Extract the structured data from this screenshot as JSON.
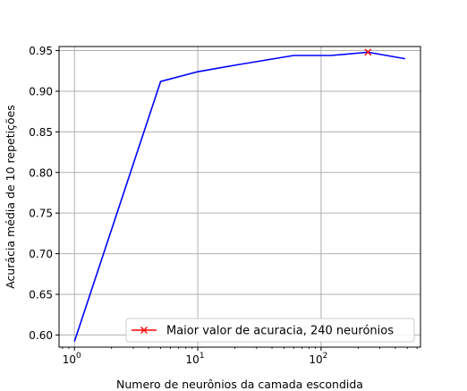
{
  "chart_data": {
    "type": "line",
    "xlabel": "Numero de neurônios da camada escondida",
    "ylabel": "Acurácia média de 10 repetições",
    "xscale": "log",
    "xlim": [
      0.75,
      640
    ],
    "ylim": [
      0.585,
      0.955
    ],
    "grid": true,
    "xticks": [
      {
        "value": 1,
        "base": "10",
        "exp": "0"
      },
      {
        "value": 10,
        "base": "10",
        "exp": "1"
      },
      {
        "value": 100,
        "base": "10",
        "exp": "2"
      }
    ],
    "yticks": [
      {
        "value": 0.6,
        "label": "0.60"
      },
      {
        "value": 0.65,
        "label": "0.65"
      },
      {
        "value": 0.7,
        "label": "0.70"
      },
      {
        "value": 0.75,
        "label": "0.75"
      },
      {
        "value": 0.8,
        "label": "0.80"
      },
      {
        "value": 0.85,
        "label": "0.85"
      },
      {
        "value": 0.9,
        "label": "0.90"
      },
      {
        "value": 0.95,
        "label": "0.95"
      }
    ],
    "series": [
      {
        "color": "#0000ff",
        "x": [
          1,
          5,
          10,
          20,
          60,
          120,
          240,
          480
        ],
        "y": [
          0.592,
          0.912,
          0.924,
          0.932,
          0.944,
          0.944,
          0.948,
          0.94
        ]
      }
    ],
    "highlight": {
      "name": "Maior valor de acuracia, 240 neurónios",
      "x": 240,
      "y": 0.948,
      "color": "#ff0000",
      "marker": "x"
    },
    "legend": {
      "placement": "lower-right"
    }
  }
}
